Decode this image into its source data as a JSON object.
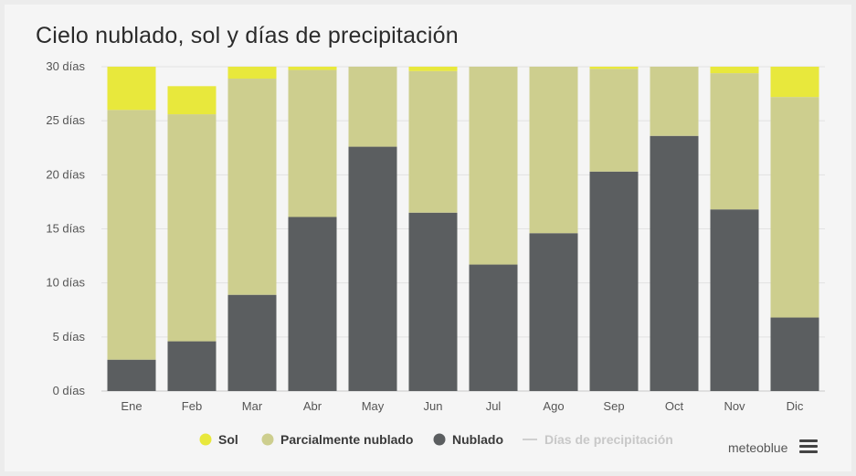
{
  "chart_data": {
    "type": "bar",
    "stacked": true,
    "title": "Cielo nublado, sol y días de precipitación",
    "categories": [
      "Ene",
      "Feb",
      "Mar",
      "Abr",
      "May",
      "Jun",
      "Jul",
      "Ago",
      "Sep",
      "Oct",
      "Nov",
      "Dic"
    ],
    "series": [
      {
        "name": "Nublado",
        "color": "#5b5e60",
        "values": [
          2.9,
          4.6,
          8.9,
          16.1,
          22.6,
          16.5,
          11.7,
          14.6,
          20.3,
          23.6,
          16.8,
          6.8
        ]
      },
      {
        "name": "Parcialmente nublado",
        "color": "#cdce8e",
        "values": [
          23.1,
          21.0,
          20.0,
          13.6,
          7.4,
          13.1,
          18.3,
          15.4,
          9.5,
          6.4,
          12.6,
          20.4
        ]
      },
      {
        "name": "Sol",
        "color": "#e8e83c",
        "values": [
          4.0,
          2.6,
          1.1,
          0.3,
          0.0,
          0.4,
          0.0,
          0.0,
          0.2,
          0.0,
          0.6,
          2.8
        ]
      }
    ],
    "ylim": [
      0,
      30
    ],
    "yticks": [
      0,
      5,
      10,
      15,
      20,
      25,
      30
    ],
    "ytick_labels": [
      "0 días",
      "5 días",
      "10 días",
      "15 días",
      "20 días",
      "25 días",
      "30 días"
    ],
    "legend": [
      {
        "label": "Sol",
        "color": "#e8e83c",
        "marker": "dot"
      },
      {
        "label": "Parcialmente nublado",
        "color": "#cdce8e",
        "marker": "dot"
      },
      {
        "label": "Nublado",
        "color": "#5b5e60",
        "marker": "dot"
      },
      {
        "label": "Días de precipitación",
        "color": "#d0d0d0",
        "marker": "line"
      }
    ],
    "grid": true
  },
  "credit": "meteoblue",
  "menu_icon": "hamburger-menu-icon"
}
